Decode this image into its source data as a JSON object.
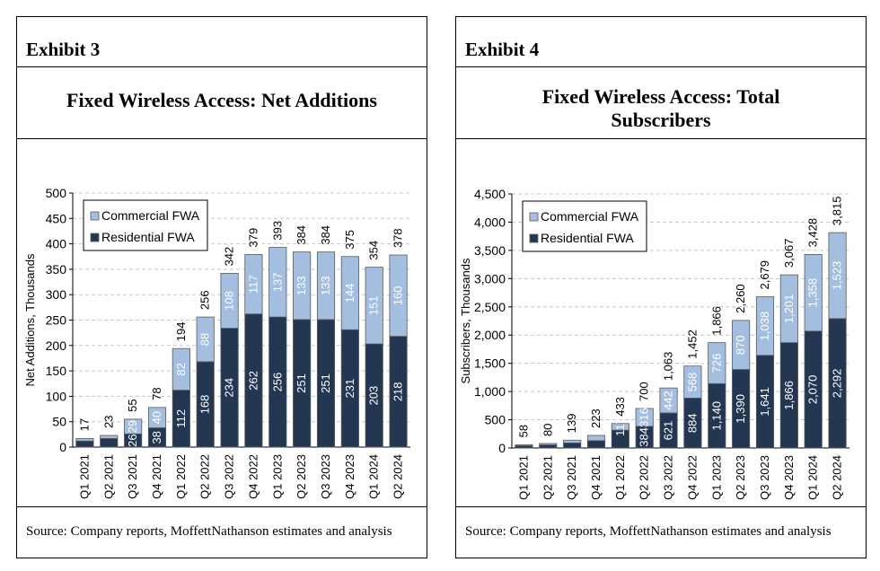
{
  "colors": {
    "residential": "#243752",
    "commercial": "#a4bedf",
    "grid": "#c8c8c8",
    "edge": "#5a5a5a"
  },
  "source_text": "Source: Company reports, MoffettNathanson estimates and analysis",
  "chart_data": [
    {
      "type": "bar",
      "exhibit": "Exhibit 3",
      "title": "Fixed Wireless Access: Net Additions",
      "ylabel": "Net Additions, Thousands",
      "xlabel": "",
      "ylim": [
        0,
        500
      ],
      "yticks": [
        0,
        50,
        100,
        150,
        200,
        250,
        300,
        350,
        400,
        450,
        500
      ],
      "ytick_labels": [
        "0",
        "50",
        "100",
        "150",
        "200",
        "250",
        "300",
        "350",
        "400",
        "450",
        "500"
      ],
      "grid": true,
      "legend_position": "top-left",
      "categories": [
        "Q1 2021",
        "Q2 2021",
        "Q3 2021",
        "Q4 2021",
        "Q1 2022",
        "Q2 2022",
        "Q3 2022",
        "Q4 2022",
        "Q1 2023",
        "Q2 2023",
        "Q3 2023",
        "Q4 2023",
        "Q1 2024",
        "Q2 2024"
      ],
      "legend": [
        "Commercial FWA",
        "Residential FWA"
      ],
      "series": [
        {
          "name": "Residential FWA",
          "values": [
            12,
            17,
            26,
            38,
            112,
            168,
            234,
            262,
            256,
            251,
            251,
            231,
            203,
            218
          ],
          "labels": [
            "",
            "",
            "26",
            "38",
            "112",
            "168",
            "234",
            "262",
            "256",
            "251",
            "251",
            "231",
            "203",
            "218"
          ]
        },
        {
          "name": "Commercial FWA",
          "values": [
            5,
            6,
            29,
            40,
            82,
            88,
            108,
            117,
            137,
            133,
            133,
            144,
            151,
            160
          ],
          "labels": [
            "",
            "",
            "29",
            "40",
            "82",
            "88",
            "108",
            "117",
            "137",
            "133",
            "133",
            "144",
            "151",
            "160"
          ]
        }
      ],
      "totals": [
        17,
        23,
        55,
        78,
        194,
        256,
        342,
        379,
        393,
        384,
        384,
        375,
        354,
        378
      ],
      "total_labels": [
        "17",
        "23",
        "55",
        "78",
        "194",
        "256",
        "342",
        "379",
        "393",
        "384",
        "384",
        "375",
        "354",
        "378"
      ]
    },
    {
      "type": "bar",
      "exhibit": "Exhibit 4",
      "title": "Fixed Wireless Access: Total Subscribers",
      "ylabel": "Subscribers, Thousands",
      "xlabel": "",
      "ylim": [
        0,
        4500
      ],
      "yticks": [
        0,
        500,
        1000,
        1500,
        2000,
        2500,
        3000,
        3500,
        4000,
        4500
      ],
      "ytick_labels": [
        "0",
        "500",
        "1,000",
        "1,500",
        "2,000",
        "2,500",
        "3,000",
        "3,500",
        "4,000",
        "4,500"
      ],
      "grid": true,
      "legend_position": "top-left",
      "categories": [
        "Q1 2021",
        "Q2 2021",
        "Q3 2021",
        "Q4 2021",
        "Q1 2022",
        "Q2 2022",
        "Q3 2022",
        "Q4 2022",
        "Q1 2023",
        "Q2 2023",
        "Q3 2023",
        "Q4 2023",
        "Q1 2024",
        "Q2 2024"
      ],
      "legend": [
        "Commercial FWA",
        "Residential FWA"
      ],
      "series": [
        {
          "name": "Residential FWA",
          "values": [
            40,
            55,
            90,
            130,
            316,
            384,
            621,
            884,
            1140,
            1390,
            1641,
            1866,
            2070,
            2292
          ],
          "labels": [
            "",
            "",
            "",
            "",
            "",
            "384",
            "621",
            "884",
            "1,140",
            "1,390",
            "1,641",
            "1,866",
            "2,070",
            "2,292"
          ]
        },
        {
          "name": "Commercial FWA",
          "values": [
            18,
            25,
            49,
            93,
            117,
            316,
            442,
            568,
            726,
            870,
            1038,
            1201,
            1358,
            1523
          ],
          "labels": [
            "",
            "",
            "",
            "",
            "117",
            "316",
            "442",
            "568",
            "726",
            "870",
            "1,038",
            "1,201",
            "1,358",
            "1,523"
          ]
        }
      ],
      "totals": [
        58,
        80,
        139,
        223,
        433,
        700,
        1063,
        1452,
        1866,
        2260,
        2679,
        3067,
        3428,
        3815
      ],
      "total_labels": [
        "58",
        "80",
        "139",
        "223",
        "433",
        "700",
        "1,063",
        "1,452",
        "1,866",
        "2,260",
        "2,679",
        "3,067",
        "3,428",
        "3,815"
      ]
    }
  ]
}
